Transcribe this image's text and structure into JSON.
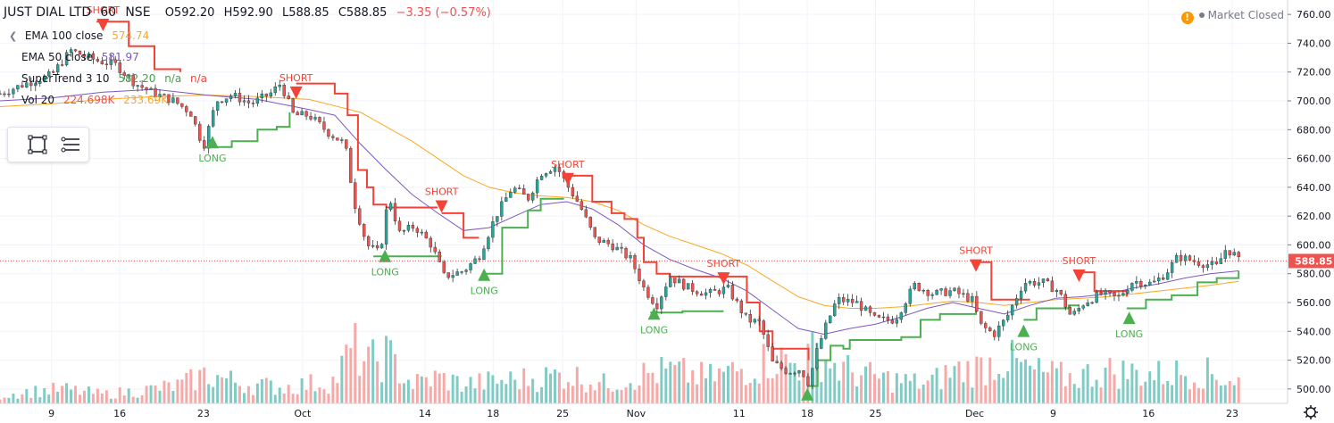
{
  "header": {
    "symbol": "JUST DIAL LTD",
    "interval": "60",
    "exchange": "NSE",
    "open": "O592.20",
    "high": "H592.90",
    "low": "L588.85",
    "close": "C588.85",
    "change": "−3.35 (−0.57%)"
  },
  "legend": [
    {
      "name": "EMA 100 close",
      "values": [
        "574.74"
      ],
      "color": "#f9a825"
    },
    {
      "name": "EMA 50 close",
      "values": [
        "581.97"
      ],
      "color": "#7e57c2"
    },
    {
      "name": "SuperTrend 3 10",
      "values": [
        "582.20",
        "n/a",
        "n/a"
      ],
      "color": "#43a047"
    },
    {
      "name": "Vol 20",
      "values": [
        "224.698K",
        "233.69K"
      ],
      "color": "#ef5350"
    }
  ],
  "status": {
    "text": "Market Closed",
    "warn_symbol": "!"
  },
  "colors": {
    "up": "#26a69a",
    "down": "#ef5350",
    "ema100": "#f9a825",
    "ema50": "#7e57c2",
    "st_long": "#4caf50",
    "st_short": "#f44336",
    "vol_up": "#80cbc4",
    "vol_down": "#f7a9a8",
    "last_price_bg": "#ef5350",
    "grid": "#f0f3fa",
    "axis_text": "#131722"
  },
  "axis": {
    "y_ticks": [
      "760.00",
      "740.00",
      "720.00",
      "700.00",
      "680.00",
      "660.00",
      "640.00",
      "620.00",
      "600.00",
      "580.00",
      "560.00",
      "540.00",
      "520.00",
      "500.00"
    ],
    "x_ticks": [
      "9",
      "16",
      "23",
      "Oct",
      "14",
      "18",
      "25",
      "Nov",
      "11",
      "18",
      "25",
      "Dec",
      "9",
      "16",
      "23"
    ],
    "last_price": "588.85"
  },
  "chart_data": {
    "type": "candlestick",
    "ylim": [
      490,
      770
    ],
    "x_ticks": [
      {
        "label": "9",
        "pos": 0.04
      },
      {
        "label": "16",
        "pos": 0.093
      },
      {
        "label": "23",
        "pos": 0.158
      },
      {
        "label": "Oct",
        "pos": 0.235
      },
      {
        "label": "14",
        "pos": 0.33
      },
      {
        "label": "18",
        "pos": 0.383
      },
      {
        "label": "25",
        "pos": 0.437
      },
      {
        "label": "Nov",
        "pos": 0.494
      },
      {
        "label": "11",
        "pos": 0.574
      },
      {
        "label": "18",
        "pos": 0.627
      },
      {
        "label": "25",
        "pos": 0.68
      },
      {
        "label": "Dec",
        "pos": 0.757
      },
      {
        "label": "9",
        "pos": 0.818
      },
      {
        "label": "16",
        "pos": 0.892
      },
      {
        "label": "23",
        "pos": 0.957
      }
    ],
    "price_path": [
      [
        0.0,
        705
      ],
      [
        0.02,
        712
      ],
      [
        0.04,
        718
      ],
      [
        0.055,
        735
      ],
      [
        0.075,
        728
      ],
      [
        0.09,
        725
      ],
      [
        0.105,
        712
      ],
      [
        0.12,
        705
      ],
      [
        0.135,
        700
      ],
      [
        0.148,
        692
      ],
      [
        0.158,
        668
      ],
      [
        0.168,
        700
      ],
      [
        0.18,
        704
      ],
      [
        0.195,
        698
      ],
      [
        0.21,
        705
      ],
      [
        0.218,
        712
      ],
      [
        0.228,
        690
      ],
      [
        0.24,
        690
      ],
      [
        0.255,
        678
      ],
      [
        0.268,
        670
      ],
      [
        0.275,
        630
      ],
      [
        0.285,
        600
      ],
      [
        0.295,
        594
      ],
      [
        0.302,
        635
      ],
      [
        0.31,
        608
      ],
      [
        0.322,
        613
      ],
      [
        0.335,
        600
      ],
      [
        0.345,
        578
      ],
      [
        0.36,
        582
      ],
      [
        0.372,
        592
      ],
      [
        0.385,
        620
      ],
      [
        0.398,
        640
      ],
      [
        0.41,
        632
      ],
      [
        0.42,
        650
      ],
      [
        0.432,
        655
      ],
      [
        0.44,
        642
      ],
      [
        0.45,
        628
      ],
      [
        0.462,
        604
      ],
      [
        0.475,
        600
      ],
      [
        0.49,
        590
      ],
      [
        0.5,
        570
      ],
      [
        0.51,
        558
      ],
      [
        0.52,
        578
      ],
      [
        0.535,
        570
      ],
      [
        0.55,
        566
      ],
      [
        0.565,
        570
      ],
      [
        0.572,
        560
      ],
      [
        0.58,
        548
      ],
      [
        0.59,
        546
      ],
      [
        0.6,
        518
      ],
      [
        0.612,
        512
      ],
      [
        0.622,
        514
      ],
      [
        0.628,
        504
      ],
      [
        0.635,
        528
      ],
      [
        0.642,
        545
      ],
      [
        0.65,
        562
      ],
      [
        0.665,
        560
      ],
      [
        0.68,
        548
      ],
      [
        0.695,
        548
      ],
      [
        0.71,
        572
      ],
      [
        0.725,
        566
      ],
      [
        0.74,
        568
      ],
      [
        0.755,
        562
      ],
      [
        0.762,
        544
      ],
      [
        0.772,
        538
      ],
      [
        0.782,
        550
      ],
      [
        0.795,
        574
      ],
      [
        0.81,
        574
      ],
      [
        0.822,
        568
      ],
      [
        0.832,
        550
      ],
      [
        0.842,
        560
      ],
      [
        0.855,
        566
      ],
      [
        0.868,
        563
      ],
      [
        0.88,
        575
      ],
      [
        0.895,
        573
      ],
      [
        0.905,
        580
      ],
      [
        0.915,
        592
      ],
      [
        0.93,
        588
      ],
      [
        0.945,
        585
      ],
      [
        0.952,
        597
      ],
      [
        0.958,
        594
      ],
      [
        0.962,
        589
      ]
    ],
    "volume_path": [
      [
        0.0,
        0.12
      ],
      [
        0.02,
        0.18
      ],
      [
        0.05,
        0.22
      ],
      [
        0.08,
        0.14
      ],
      [
        0.11,
        0.2
      ],
      [
        0.14,
        0.28
      ],
      [
        0.16,
        0.45
      ],
      [
        0.19,
        0.3
      ],
      [
        0.22,
        0.25
      ],
      [
        0.26,
        0.35
      ],
      [
        0.275,
        0.9
      ],
      [
        0.285,
        0.6
      ],
      [
        0.3,
        0.75
      ],
      [
        0.32,
        0.3
      ],
      [
        0.34,
        0.4
      ],
      [
        0.36,
        0.3
      ],
      [
        0.39,
        0.35
      ],
      [
        0.42,
        0.4
      ],
      [
        0.44,
        0.45
      ],
      [
        0.47,
        0.3
      ],
      [
        0.5,
        0.45
      ],
      [
        0.52,
        0.5
      ],
      [
        0.55,
        0.4
      ],
      [
        0.58,
        0.55
      ],
      [
        0.6,
        0.7
      ],
      [
        0.62,
        0.6
      ],
      [
        0.635,
        0.8
      ],
      [
        0.65,
        0.55
      ],
      [
        0.68,
        0.4
      ],
      [
        0.72,
        0.3
      ],
      [
        0.74,
        0.5
      ],
      [
        0.76,
        0.55
      ],
      [
        0.78,
        0.7
      ],
      [
        0.8,
        0.5
      ],
      [
        0.83,
        0.4
      ],
      [
        0.86,
        0.5
      ],
      [
        0.9,
        0.45
      ],
      [
        0.93,
        0.5
      ],
      [
        0.962,
        0.35
      ]
    ],
    "ema50": [
      [
        0.0,
        700
      ],
      [
        0.04,
        702
      ],
      [
        0.08,
        706
      ],
      [
        0.12,
        708
      ],
      [
        0.16,
        704
      ],
      [
        0.2,
        701
      ],
      [
        0.24,
        694
      ],
      [
        0.26,
        690
      ],
      [
        0.28,
        670
      ],
      [
        0.3,
        652
      ],
      [
        0.32,
        635
      ],
      [
        0.34,
        622
      ],
      [
        0.36,
        610
      ],
      [
        0.38,
        612
      ],
      [
        0.4,
        620
      ],
      [
        0.42,
        628
      ],
      [
        0.44,
        630
      ],
      [
        0.46,
        625
      ],
      [
        0.48,
        614
      ],
      [
        0.5,
        600
      ],
      [
        0.52,
        590
      ],
      [
        0.54,
        583
      ],
      [
        0.56,
        577
      ],
      [
        0.58,
        568
      ],
      [
        0.6,
        555
      ],
      [
        0.62,
        542
      ],
      [
        0.64,
        538
      ],
      [
        0.66,
        542
      ],
      [
        0.68,
        545
      ],
      [
        0.7,
        550
      ],
      [
        0.72,
        556
      ],
      [
        0.74,
        560
      ],
      [
        0.76,
        556
      ],
      [
        0.78,
        552
      ],
      [
        0.8,
        558
      ],
      [
        0.82,
        563
      ],
      [
        0.84,
        564
      ],
      [
        0.86,
        566
      ],
      [
        0.88,
        570
      ],
      [
        0.9,
        573
      ],
      [
        0.92,
        577
      ],
      [
        0.94,
        580
      ],
      [
        0.962,
        582
      ]
    ],
    "ema100": [
      [
        0.0,
        696
      ],
      [
        0.04,
        698
      ],
      [
        0.08,
        701
      ],
      [
        0.12,
        703
      ],
      [
        0.16,
        704
      ],
      [
        0.2,
        703
      ],
      [
        0.24,
        701
      ],
      [
        0.28,
        692
      ],
      [
        0.32,
        672
      ],
      [
        0.34,
        660
      ],
      [
        0.36,
        648
      ],
      [
        0.38,
        640
      ],
      [
        0.4,
        636
      ],
      [
        0.42,
        634
      ],
      [
        0.44,
        633
      ],
      [
        0.46,
        630
      ],
      [
        0.48,
        624
      ],
      [
        0.5,
        614
      ],
      [
        0.52,
        606
      ],
      [
        0.54,
        600
      ],
      [
        0.56,
        594
      ],
      [
        0.58,
        586
      ],
      [
        0.6,
        575
      ],
      [
        0.62,
        564
      ],
      [
        0.64,
        558
      ],
      [
        0.66,
        556
      ],
      [
        0.68,
        556
      ],
      [
        0.7,
        557
      ],
      [
        0.72,
        559
      ],
      [
        0.74,
        561
      ],
      [
        0.76,
        560
      ],
      [
        0.78,
        558
      ],
      [
        0.8,
        560
      ],
      [
        0.82,
        562
      ],
      [
        0.84,
        563
      ],
      [
        0.86,
        564
      ],
      [
        0.88,
        566
      ],
      [
        0.9,
        568
      ],
      [
        0.92,
        570
      ],
      [
        0.94,
        572
      ],
      [
        0.962,
        574.74
      ]
    ],
    "supertrend": [
      {
        "dir": "short",
        "points": [
          [
            0.075,
            755
          ],
          [
            0.1,
            738
          ],
          [
            0.12,
            722
          ],
          [
            0.14,
            720
          ]
        ]
      },
      {
        "dir": "long",
        "points": [
          [
            0.158,
            668
          ],
          [
            0.18,
            672
          ],
          [
            0.2,
            680
          ],
          [
            0.215,
            682
          ],
          [
            0.225,
            692
          ]
        ]
      },
      {
        "dir": "short",
        "points": [
          [
            0.23,
            712
          ],
          [
            0.25,
            712
          ],
          [
            0.26,
            705
          ],
          [
            0.27,
            690
          ],
          [
            0.278,
            652
          ],
          [
            0.285,
            640
          ],
          [
            0.29,
            628
          ],
          [
            0.3,
            626
          ],
          [
            0.31,
            626
          ],
          [
            0.34,
            626
          ]
        ]
      },
      {
        "dir": "long",
        "points": [
          [
            0.29,
            592
          ],
          [
            0.3,
            592
          ],
          [
            0.33,
            592
          ],
          [
            0.343,
            592
          ]
        ]
      },
      {
        "dir": "short",
        "points": [
          [
            0.343,
            622
          ],
          [
            0.36,
            605
          ],
          [
            0.372,
            605
          ]
        ]
      },
      {
        "dir": "long",
        "points": [
          [
            0.375,
            580
          ],
          [
            0.39,
            612
          ],
          [
            0.41,
            624
          ],
          [
            0.42,
            632
          ],
          [
            0.438,
            632
          ]
        ]
      },
      {
        "dir": "short",
        "points": [
          [
            0.44,
            648
          ],
          [
            0.455,
            648
          ],
          [
            0.46,
            630
          ],
          [
            0.475,
            622
          ],
          [
            0.485,
            618
          ],
          [
            0.495,
            605
          ],
          [
            0.5,
            588
          ],
          [
            0.51,
            580
          ],
          [
            0.52,
            578
          ],
          [
            0.56,
            578
          ]
        ]
      },
      {
        "dir": "long",
        "points": [
          [
            0.505,
            553
          ],
          [
            0.53,
            554
          ],
          [
            0.56,
            554
          ],
          [
            0.562,
            554
          ]
        ]
      },
      {
        "dir": "short",
        "points": [
          [
            0.562,
            578
          ],
          [
            0.58,
            560
          ],
          [
            0.59,
            540
          ],
          [
            0.6,
            528
          ],
          [
            0.62,
            528
          ],
          [
            0.628,
            520
          ]
        ]
      },
      {
        "dir": "long",
        "points": [
          [
            0.628,
            502
          ],
          [
            0.635,
            520
          ],
          [
            0.645,
            530
          ],
          [
            0.655,
            528
          ],
          [
            0.66,
            534
          ],
          [
            0.68,
            534
          ],
          [
            0.7,
            536
          ],
          [
            0.715,
            548
          ],
          [
            0.73,
            552
          ],
          [
            0.758,
            556
          ]
        ]
      },
      {
        "dir": "short",
        "points": [
          [
            0.758,
            588
          ],
          [
            0.77,
            562
          ],
          [
            0.79,
            562
          ],
          [
            0.8,
            562
          ]
        ]
      },
      {
        "dir": "long",
        "points": [
          [
            0.795,
            548
          ],
          [
            0.805,
            556
          ],
          [
            0.815,
            556
          ],
          [
            0.83,
            558
          ],
          [
            0.838,
            558
          ]
        ]
      },
      {
        "dir": "short",
        "points": [
          [
            0.838,
            581
          ],
          [
            0.85,
            568
          ],
          [
            0.87,
            568
          ],
          [
            0.875,
            564
          ]
        ]
      },
      {
        "dir": "long",
        "points": [
          [
            0.875,
            556
          ],
          [
            0.89,
            562
          ],
          [
            0.91,
            565
          ],
          [
            0.93,
            574
          ],
          [
            0.945,
            577
          ],
          [
            0.962,
            582
          ]
        ]
      }
    ],
    "signals": [
      {
        "type": "SHORT",
        "pos": 0.08,
        "price": 752
      },
      {
        "type": "LONG",
        "pos": 0.165,
        "price": 672
      },
      {
        "type": "SHORT",
        "pos": 0.23,
        "price": 705
      },
      {
        "type": "LONG",
        "pos": 0.299,
        "price": 593
      },
      {
        "type": "SHORT",
        "pos": 0.343,
        "price": 626
      },
      {
        "type": "LONG",
        "pos": 0.376,
        "price": 580
      },
      {
        "type": "SHORT",
        "pos": 0.441,
        "price": 645
      },
      {
        "type": "LONG",
        "pos": 0.508,
        "price": 553
      },
      {
        "type": "SHORT",
        "pos": 0.562,
        "price": 576
      },
      {
        "type": "LONG",
        "pos": 0.627,
        "price": 497
      },
      {
        "type": "SHORT",
        "pos": 0.758,
        "price": 585
      },
      {
        "type": "LONG",
        "pos": 0.795,
        "price": 541
      },
      {
        "type": "SHORT",
        "pos": 0.838,
        "price": 578
      },
      {
        "type": "LONG",
        "pos": 0.877,
        "price": 550
      }
    ]
  }
}
